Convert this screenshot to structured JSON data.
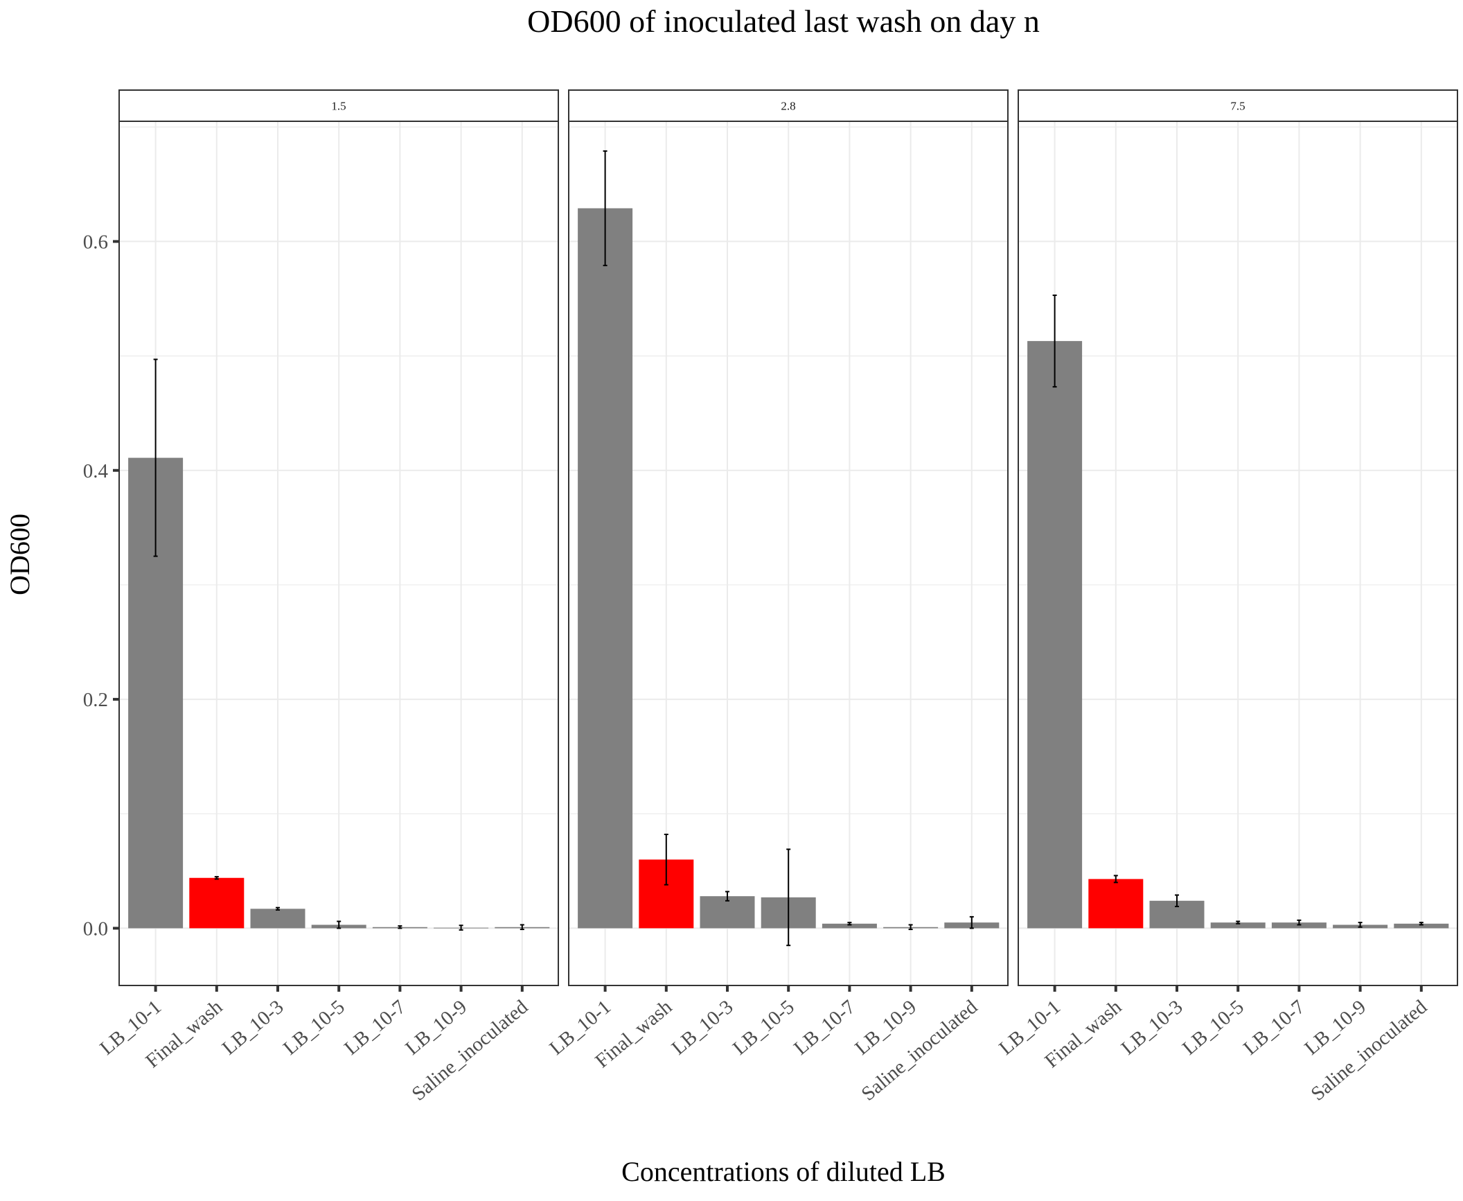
{
  "chart_data": {
    "type": "bar",
    "title": "OD600 of inoculated last wash on day n",
    "xlabel": "Concentrations of diluted LB",
    "ylabel": "OD600",
    "ylim": [
      -0.05,
      0.705
    ],
    "yticks": [
      0.0,
      0.2,
      0.4,
      0.6
    ],
    "ytick_labels": [
      "0.0",
      "0.2",
      "0.4",
      "0.6"
    ],
    "grid": true,
    "facet_by": "day",
    "categories": [
      "LB_10-1",
      "Final_wash",
      "LB_10-3",
      "LB_10-5",
      "LB_10-7",
      "LB_10-9",
      "Saline_inoculated"
    ],
    "colors": {
      "default": "#808080",
      "highlight": "#ff0000",
      "error_bar": "#000000",
      "grid": "#ebebeb",
      "panel_border": "#333333"
    },
    "highlight_category": "Final_wash",
    "panels": [
      {
        "label": "1.5",
        "values": [
          0.411,
          0.044,
          0.017,
          0.003,
          0.001,
          0.0005,
          0.001
        ],
        "errors": [
          0.086,
          0.001,
          0.001,
          0.003,
          0.001,
          0.002,
          0.002
        ]
      },
      {
        "label": "2.8",
        "values": [
          0.629,
          0.06,
          0.028,
          0.027,
          0.004,
          0.001,
          0.005
        ],
        "errors": [
          0.05,
          0.022,
          0.004,
          0.042,
          0.001,
          0.002,
          0.005
        ]
      },
      {
        "label": "7.5",
        "values": [
          0.513,
          0.043,
          0.024,
          0.005,
          0.005,
          0.003,
          0.004
        ],
        "errors": [
          0.04,
          0.003,
          0.005,
          0.001,
          0.002,
          0.002,
          0.001
        ]
      }
    ]
  }
}
